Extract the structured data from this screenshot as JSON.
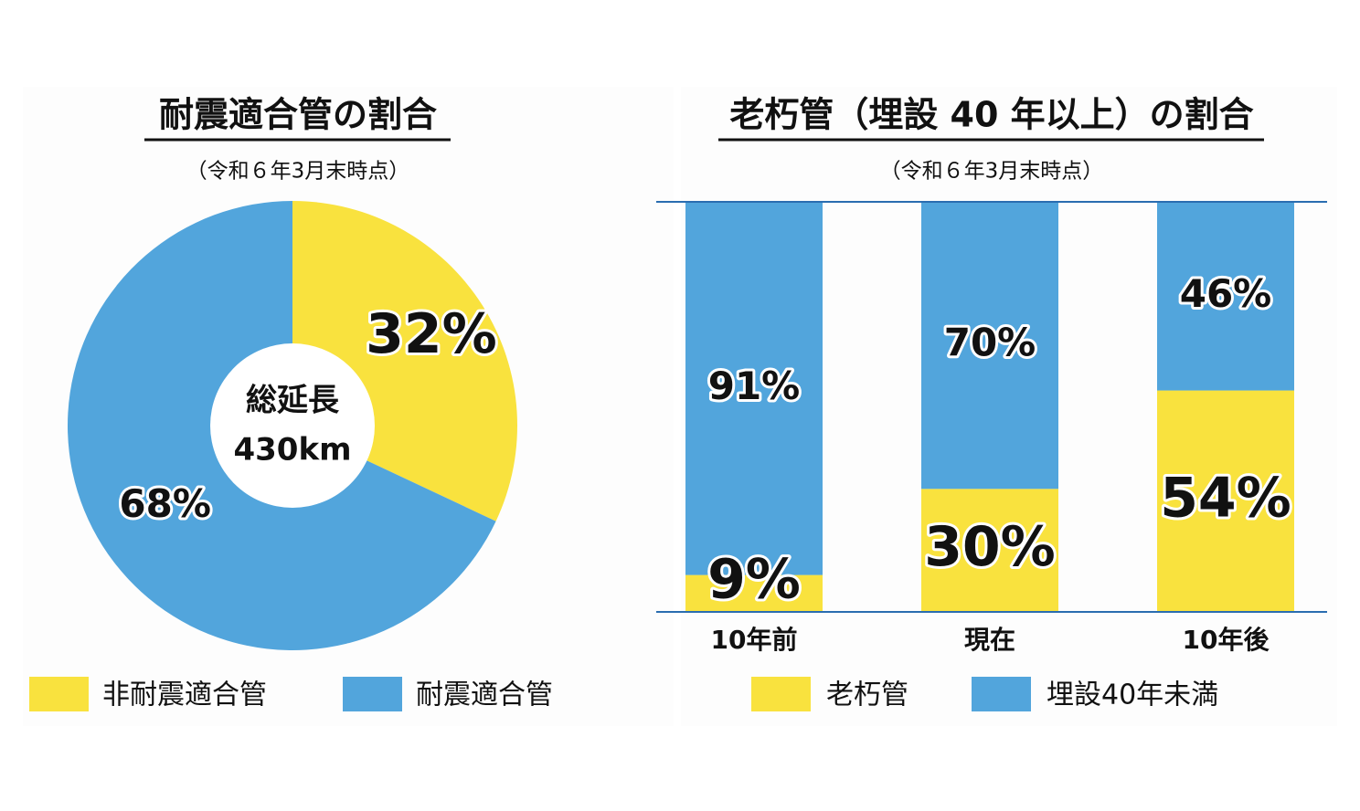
{
  "chart_data": [
    {
      "type": "pie",
      "title": "耐震適合管の割合",
      "subtitle": "（令和６年3月末時点）",
      "center_text": [
        "総延長",
        "430km"
      ],
      "categories": [
        "非耐震適合管",
        "耐震適合管"
      ],
      "values": [
        32,
        68
      ],
      "value_labels": [
        "32%",
        "68%"
      ],
      "colors": [
        "#f9e23e",
        "#52a5dc"
      ]
    },
    {
      "type": "stacked_bar",
      "title": "老朽管（埋設 40 年以上）の割合",
      "subtitle": "（令和６年3月末時点）",
      "categories": [
        "10年前",
        "現在",
        "10年後"
      ],
      "ylim": [
        0,
        100
      ],
      "series": [
        {
          "name": "老朽管",
          "color": "#f9e23e",
          "values": [
            9,
            30,
            54
          ],
          "value_labels": [
            "9%",
            "30%",
            "54%"
          ]
        },
        {
          "name": "埋設40年未満",
          "color": "#52a5dc",
          "values": [
            91,
            70,
            46
          ],
          "value_labels": [
            "91%",
            "70%",
            "46%"
          ]
        }
      ]
    }
  ]
}
